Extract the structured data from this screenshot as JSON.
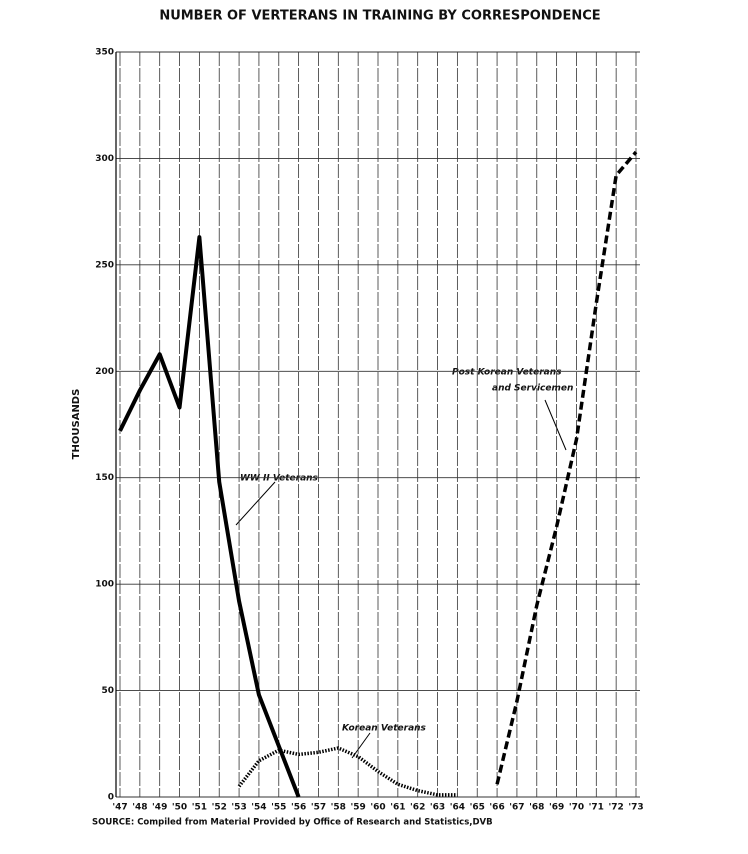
{
  "chart_data": {
    "type": "line",
    "title": "NUMBER OF VERTERANS IN TRAINING BY CORRESPONDENCE",
    "y_label": "THOUSANDS",
    "source": "SOURCE: Compiled from Material Provided by Office of Research and Statistics,DVB",
    "xlim": [
      1947,
      1973
    ],
    "xticks": [
      {
        "value": 1947,
        "label": "'47"
      },
      {
        "value": 1948,
        "label": "'48"
      },
      {
        "value": 1949,
        "label": "'49"
      },
      {
        "value": 1950,
        "label": "'50"
      },
      {
        "value": 1951,
        "label": "'51"
      },
      {
        "value": 1952,
        "label": "'52"
      },
      {
        "value": 1953,
        "label": "'53"
      },
      {
        "value": 1954,
        "label": "'54"
      },
      {
        "value": 1955,
        "label": "'55"
      },
      {
        "value": 1956,
        "label": "'56"
      },
      {
        "value": 1957,
        "label": "'57"
      },
      {
        "value": 1958,
        "label": "'58"
      },
      {
        "value": 1959,
        "label": "'59"
      },
      {
        "value": 1960,
        "label": "'60"
      },
      {
        "value": 1961,
        "label": "'61"
      },
      {
        "value": 1962,
        "label": "'62"
      },
      {
        "value": 1963,
        "label": "'63"
      },
      {
        "value": 1964,
        "label": "'64"
      },
      {
        "value": 1965,
        "label": "'65"
      },
      {
        "value": 1966,
        "label": "'66"
      },
      {
        "value": 1967,
        "label": "'67"
      },
      {
        "value": 1968,
        "label": "'68"
      },
      {
        "value": 1969,
        "label": "'69"
      },
      {
        "value": 1970,
        "label": "'70"
      },
      {
        "value": 1971,
        "label": "'71"
      },
      {
        "value": 1972,
        "label": "'72"
      },
      {
        "value": 1973,
        "label": "'73"
      }
    ],
    "ylim": [
      0,
      350
    ],
    "yticks": [
      0,
      50,
      100,
      150,
      200,
      250,
      300,
      350
    ],
    "grid": true,
    "series": [
      {
        "name": "WW II Veterans",
        "color": "#000000",
        "style": "solid",
        "x": [
          1947,
          1948,
          1949,
          1950,
          1951,
          1952,
          1953,
          1954,
          1955,
          1956
        ],
        "values": [
          172,
          191,
          208,
          183,
          263,
          148,
          92,
          48,
          24,
          0
        ]
      },
      {
        "name": "Korean Veterans",
        "color": "#000000",
        "style": "dotted",
        "x": [
          1953,
          1954,
          1955,
          1956,
          1957,
          1958,
          1959,
          1960,
          1961,
          1962,
          1963,
          1964
        ],
        "values": [
          5,
          17,
          22,
          20,
          21,
          23,
          19,
          12,
          6,
          3,
          1,
          1
        ]
      },
      {
        "name": "Post Korean Veterans and Servicemen",
        "color": "#000000",
        "style": "dashed",
        "x": [
          1966,
          1967,
          1968,
          1969,
          1970,
          1971,
          1972,
          1973
        ],
        "values": [
          6,
          45,
          90,
          127,
          168,
          232,
          292,
          303
        ]
      }
    ],
    "annotations": [
      {
        "lines": [
          "WW II Veterans"
        ]
      },
      {
        "lines": [
          "Korean Veterans"
        ]
      },
      {
        "lines": [
          "Post Korean Veterans",
          "and Servicemen"
        ]
      }
    ]
  }
}
